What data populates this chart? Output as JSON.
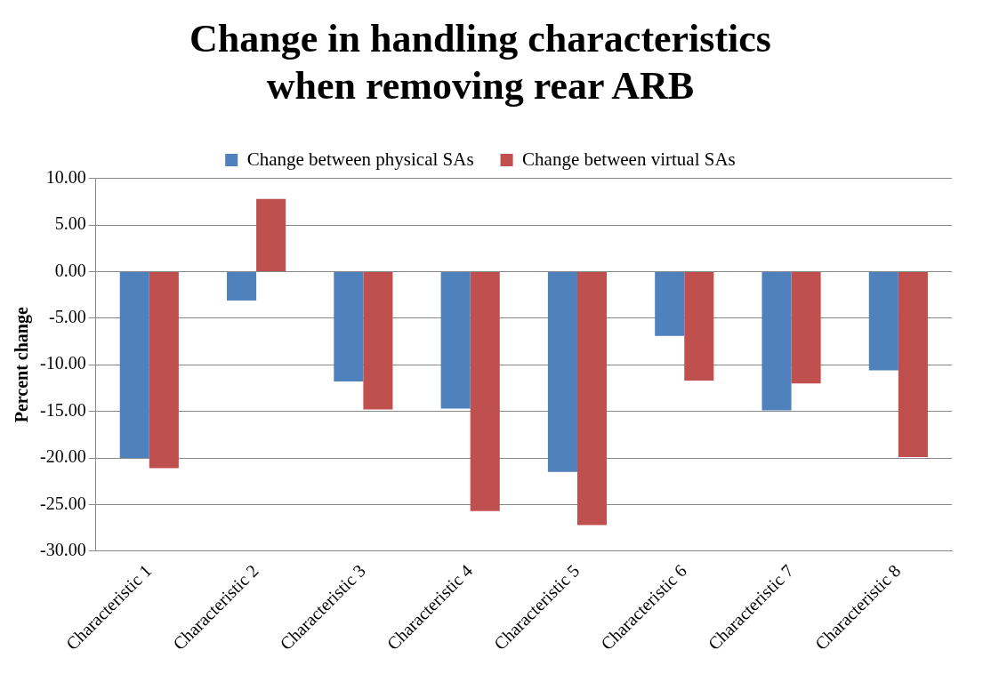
{
  "chart_data": {
    "type": "bar",
    "title": "Change in handling characteristics when removing rear ARB",
    "ylabel": "Percent change",
    "categories": [
      "Characteristic 1",
      "Characteristic 2",
      "Characteristic 3",
      "Characteristic 4",
      "Characteristic 5",
      "Characteristic 6",
      "Characteristic 7",
      "Characteristic 8"
    ],
    "series": [
      {
        "name": "Change between physical SAs",
        "color": "#4f81bd",
        "values": [
          -20.0,
          -3.1,
          -11.8,
          -14.7,
          -21.5,
          -6.9,
          -14.9,
          -10.6
        ]
      },
      {
        "name": "Change between virtual SAs",
        "color": "#c0504d",
        "values": [
          -21.1,
          7.8,
          -14.8,
          -25.7,
          -27.2,
          -11.7,
          -12.0,
          -19.9
        ]
      }
    ],
    "ylim": [
      -30,
      10
    ],
    "yticks": [
      {
        "value": -30,
        "label": "-30.00"
      },
      {
        "value": -25,
        "label": "-25.00"
      },
      {
        "value": -20,
        "label": "-20.00"
      },
      {
        "value": -15,
        "label": "-15.00"
      },
      {
        "value": -10,
        "label": "-10.00"
      },
      {
        "value": -5,
        "label": "-5.00"
      },
      {
        "value": 0,
        "label": "0.00"
      },
      {
        "value": 5,
        "label": "5.00"
      },
      {
        "value": 10,
        "label": "10.00"
      }
    ],
    "grid": "y",
    "legend": "top"
  }
}
